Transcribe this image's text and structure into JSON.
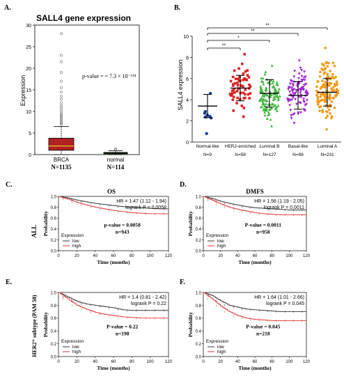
{
  "colors": {
    "box_fill": "#b22222",
    "box_median": "#f0c020",
    "normal_fill": "#4aa832",
    "low": "#333333",
    "high": "#e03030",
    "frame": "#000000"
  },
  "panels": {
    "A": {
      "letter": "A.",
      "title": "SALL4  gene expression",
      "ylabel": "Expression",
      "pvalue": "p-value = = 7.3 × 10⁻¹¹⁴",
      "groups": [
        "BRCA",
        "normal"
      ],
      "ns": [
        "N=1135",
        "N=114"
      ]
    },
    "B": {
      "letter": "B.",
      "ylabel": "SALL4 expression",
      "groups": [
        "Normal-like",
        "HER2-enriched",
        "Luminal B",
        "Basal-like",
        "Luminal A"
      ],
      "ns": [
        "N=9",
        "N=58",
        "N=127",
        "N=98",
        "N=231"
      ],
      "sig": [
        "**",
        "*",
        "**",
        "**"
      ]
    },
    "C": {
      "letter": "C.",
      "title": "OS",
      "row_label": "ALL",
      "hr": "HR = 1.47 (1.12 - 1.94)",
      "logrank": "logrank P = 0.0058",
      "pvalue": "p-value = 0.0058",
      "n": "n=943"
    },
    "D": {
      "letter": "D.",
      "title": "DMFS",
      "hr": "HR = 1.56 (1.19 - 2.05)",
      "logrank": "logrank P = 0.0011",
      "pvalue": "P-value = 0.0011",
      "n": "n=958"
    },
    "E": {
      "letter": "E.",
      "row_label": "HER2⁺ subtype (PAM 50)",
      "hr": "HR = 1.4 (0.81 - 2.42)",
      "logrank": "logrank P = 0.22",
      "pvalue": "P-value = 0.22",
      "n": "n=198"
    },
    "F": {
      "letter": "F.",
      "hr": "HR = 1.64 (1.01 - 2.66)",
      "logrank": "logrank P = 0.045",
      "pvalue": "P-value = 0.045",
      "n": "n=218"
    }
  },
  "km_common": {
    "xlabel": "Time (months)",
    "ylabel": "Probability",
    "legend_title": "Expression",
    "legend_low": "low",
    "legend_high": "high"
  },
  "chart_data": [
    {
      "type": "box",
      "panel": "A",
      "ylim": [
        0,
        30
      ],
      "yticks": [
        0,
        5,
        10,
        15,
        20,
        25,
        30
      ],
      "series": [
        {
          "name": "BRCA",
          "q1": 1.0,
          "median": 2.0,
          "q3": 3.8,
          "whisker_low": 0,
          "whisker_high": 6.5,
          "outliers": [
            7,
            7.3,
            7.6,
            8,
            8.3,
            8.7,
            9,
            9.4,
            9.8,
            10.3,
            10.8,
            11.3,
            12,
            12.8,
            13.5,
            14.5,
            15.5,
            17,
            19,
            21.5,
            23,
            28
          ]
        },
        {
          "name": "normal",
          "q1": 0.2,
          "median": 0.35,
          "q3": 0.5,
          "whisker_low": 0,
          "whisker_high": 0.9,
          "outliers": [
            1.1,
            1.3
          ]
        }
      ]
    },
    {
      "type": "scatter",
      "panel": "B",
      "ylim": [
        0,
        10
      ],
      "yticks": [
        0,
        2,
        4,
        6,
        8,
        10
      ],
      "categories": [
        "Normal-like",
        "HER2-enriched",
        "Luminal B",
        "Basal-like",
        "Luminal A"
      ],
      "mean": [
        3.4,
        5.1,
        4.6,
        4.4,
        4.7
      ],
      "sd": [
        1.1,
        1.2,
        1.3,
        1.3,
        1.3
      ],
      "min": [
        0.8,
        2.4,
        1.5,
        1.8,
        1.2
      ],
      "max": [
        4.6,
        8.3,
        7.2,
        7.7,
        8.9
      ],
      "point_colors": [
        "#1a3d9e",
        "#e02020",
        "#3cb83c",
        "#a020d0",
        "#f29a1a"
      ]
    },
    {
      "type": "line",
      "panel": "C",
      "title": "OS",
      "xlim": [
        0,
        120
      ],
      "ylim": [
        0,
        1
      ],
      "series": [
        {
          "name": "low",
          "x": [
            0,
            10,
            20,
            30,
            40,
            50,
            60,
            70,
            80,
            90,
            100,
            110,
            120
          ],
          "y": [
            1,
            0.97,
            0.93,
            0.9,
            0.87,
            0.85,
            0.83,
            0.81,
            0.8,
            0.79,
            0.78,
            0.77,
            0.77
          ]
        },
        {
          "name": "high",
          "x": [
            0,
            10,
            20,
            30,
            40,
            50,
            60,
            70,
            80,
            90,
            100,
            110,
            120
          ],
          "y": [
            1,
            0.95,
            0.89,
            0.84,
            0.8,
            0.77,
            0.74,
            0.72,
            0.7,
            0.69,
            0.68,
            0.68,
            0.68
          ]
        }
      ]
    },
    {
      "type": "line",
      "panel": "D",
      "title": "DMFS",
      "xlim": [
        0,
        120
      ],
      "ylim": [
        0,
        1
      ],
      "series": [
        {
          "name": "low",
          "x": [
            0,
            10,
            20,
            30,
            40,
            50,
            60,
            70,
            80,
            90,
            100,
            110,
            120
          ],
          "y": [
            1,
            0.96,
            0.91,
            0.87,
            0.84,
            0.81,
            0.79,
            0.78,
            0.77,
            0.76,
            0.75,
            0.75,
            0.75
          ]
        },
        {
          "name": "high",
          "x": [
            0,
            10,
            20,
            30,
            40,
            50,
            60,
            70,
            80,
            90,
            100,
            110,
            120
          ],
          "y": [
            1,
            0.93,
            0.86,
            0.8,
            0.76,
            0.73,
            0.7,
            0.68,
            0.67,
            0.66,
            0.66,
            0.66,
            0.66
          ]
        }
      ]
    },
    {
      "type": "line",
      "panel": "E",
      "xlim": [
        0,
        120
      ],
      "ylim": [
        0,
        1
      ],
      "series": [
        {
          "name": "low",
          "x": [
            0,
            10,
            20,
            30,
            40,
            50,
            60,
            70,
            80,
            90,
            100,
            110,
            120
          ],
          "y": [
            1,
            0.93,
            0.86,
            0.82,
            0.8,
            0.78,
            0.76,
            0.73,
            0.72,
            0.72,
            0.72,
            0.72,
            0.72
          ]
        },
        {
          "name": "high",
          "x": [
            0,
            10,
            20,
            30,
            40,
            50,
            60,
            70,
            80,
            90,
            100,
            110,
            120
          ],
          "y": [
            1,
            0.9,
            0.8,
            0.74,
            0.69,
            0.66,
            0.64,
            0.62,
            0.61,
            0.6,
            0.6,
            0.6,
            0.6
          ]
        }
      ]
    },
    {
      "type": "line",
      "panel": "F",
      "xlim": [
        0,
        120
      ],
      "ylim": [
        0,
        1
      ],
      "series": [
        {
          "name": "low",
          "x": [
            0,
            10,
            20,
            30,
            40,
            50,
            60,
            70,
            80,
            90,
            100,
            110,
            120
          ],
          "y": [
            1,
            0.95,
            0.87,
            0.8,
            0.77,
            0.74,
            0.73,
            0.72,
            0.71,
            0.7,
            0.7,
            0.7,
            0.7
          ]
        },
        {
          "name": "high",
          "x": [
            0,
            10,
            20,
            30,
            40,
            50,
            60,
            70,
            80,
            90,
            100,
            110,
            120
          ],
          "y": [
            1,
            0.9,
            0.79,
            0.7,
            0.64,
            0.6,
            0.58,
            0.57,
            0.56,
            0.56,
            0.56,
            0.56,
            0.56
          ]
        }
      ]
    }
  ]
}
